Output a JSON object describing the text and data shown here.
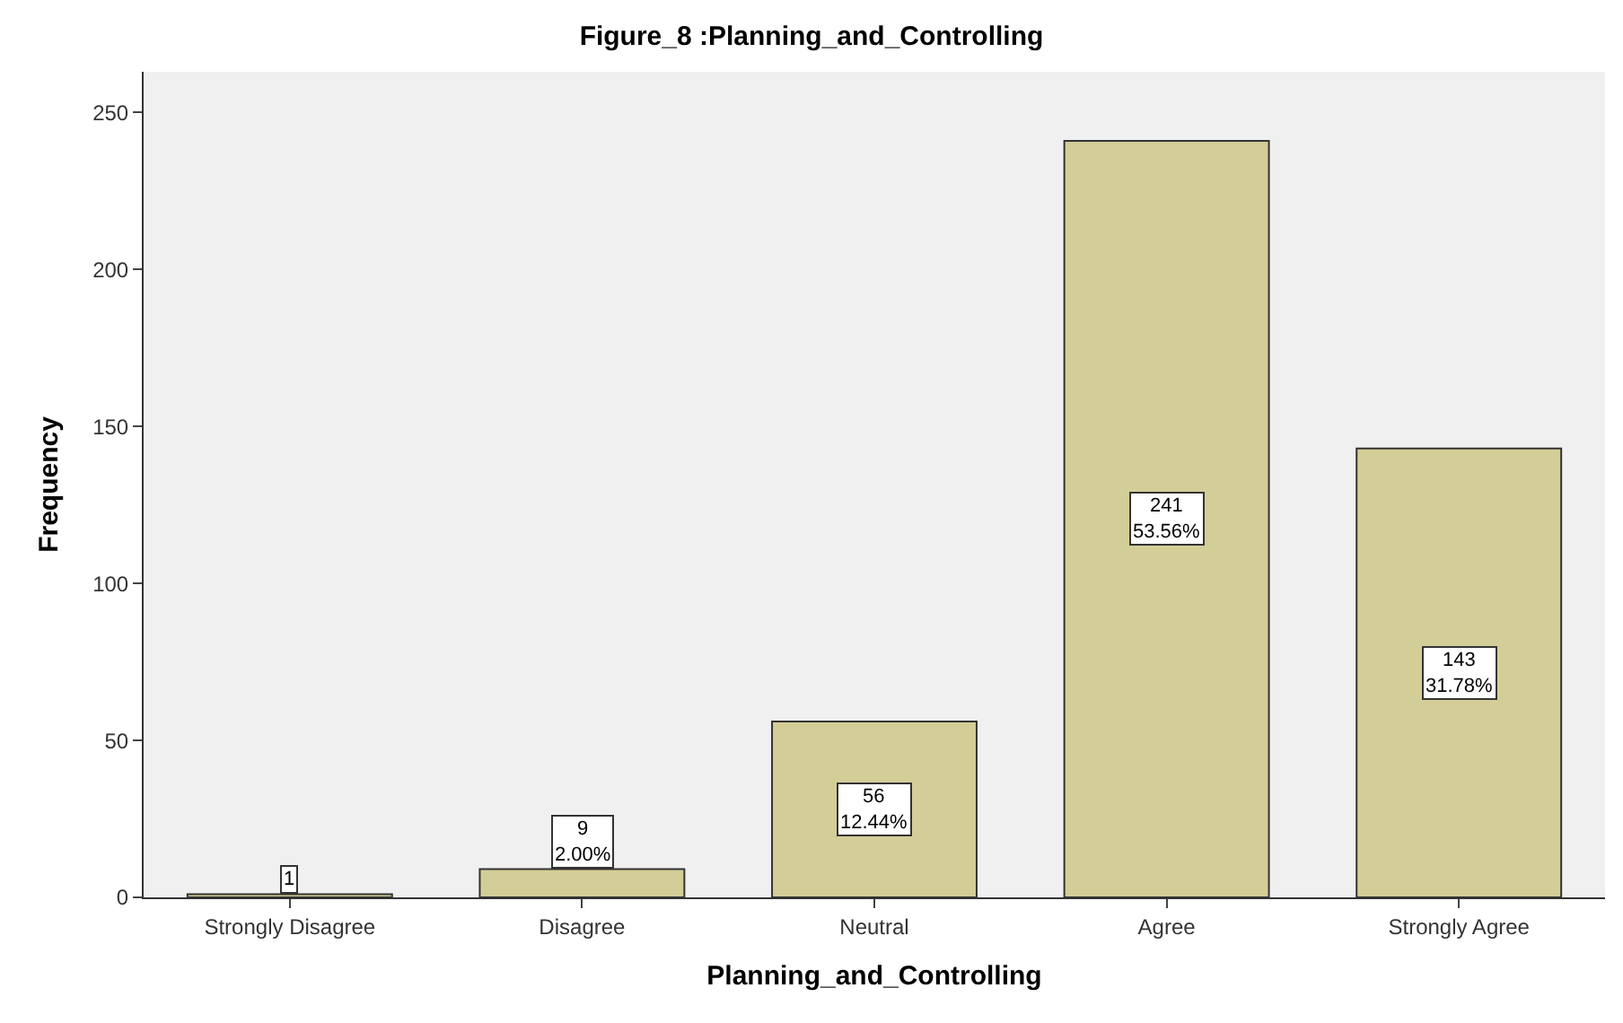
{
  "chart_data": {
    "type": "bar",
    "title": "Figure_8 :Planning_and_Controlling",
    "xlabel": "Planning_and_Controlling",
    "ylabel": "Frequency",
    "categories": [
      "Strongly Disagree",
      "Disagree",
      "Neutral",
      "Agree",
      "Strongly Agree"
    ],
    "values": [
      1,
      9,
      56,
      241,
      143
    ],
    "value_labels": [
      "1",
      "9\n2.00%",
      "56\n12.44%",
      "241\n53.56%",
      "143\n31.78%"
    ],
    "color": "#d3ce97",
    "ylim": [
      0,
      263
    ],
    "yticks": [
      0,
      50,
      100,
      150,
      200,
      250
    ],
    "grid": false,
    "legend": false
  }
}
